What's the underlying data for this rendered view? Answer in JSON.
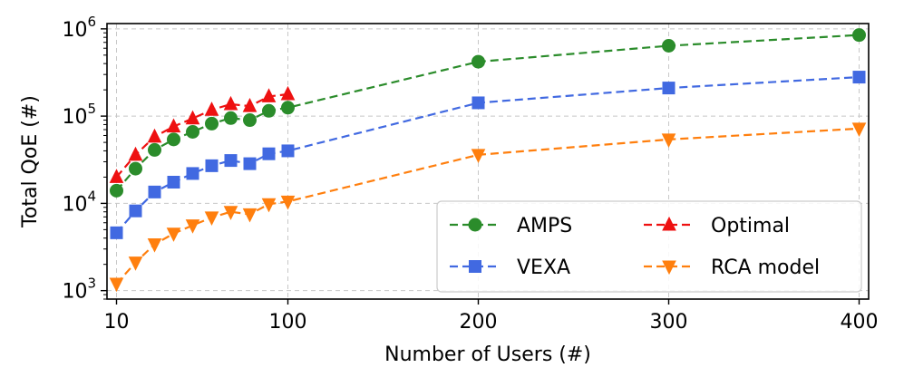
{
  "chart_data": {
    "type": "line",
    "title": "",
    "xlabel": "Number of Users (#)",
    "ylabel": "Total QoE (#)",
    "yscale": "log",
    "xlim": [
      5,
      405
    ],
    "ylim": [
      800,
      1150000
    ],
    "xticks": [
      10,
      100,
      200,
      300,
      400
    ],
    "xtick_labels": [
      "10",
      "100",
      "200",
      "300",
      "400"
    ],
    "yticks": [
      1000,
      10000,
      100000,
      1000000
    ],
    "ytick_labels": [
      {
        "base": "10",
        "exp": "3"
      },
      {
        "base": "10",
        "exp": "4"
      },
      {
        "base": "10",
        "exp": "5"
      },
      {
        "base": "10",
        "exp": "6"
      }
    ],
    "grid": true,
    "legend": {
      "placement": "lower-right",
      "columns": 2
    },
    "series": [
      {
        "name": "AMPS",
        "color": "#2b8c2b",
        "marker": "circle",
        "x": [
          10,
          20,
          30,
          40,
          50,
          60,
          70,
          80,
          90,
          100,
          200,
          300,
          400
        ],
        "y": [
          14000,
          25000,
          41000,
          54000,
          66000,
          82000,
          95000,
          90000,
          115000,
          125000,
          420000,
          640000,
          850000
        ]
      },
      {
        "name": "Optimal",
        "color": "#ee1111",
        "marker": "triangle-up",
        "x": [
          10,
          20,
          30,
          40,
          50,
          60,
          70,
          80,
          90,
          100
        ],
        "y": [
          20000,
          36000,
          58000,
          76000,
          94000,
          118000,
          137000,
          130000,
          168000,
          178000
        ]
      },
      {
        "name": "VEXA",
        "color": "#4169e1",
        "marker": "square",
        "x": [
          10,
          20,
          30,
          40,
          50,
          60,
          70,
          80,
          90,
          100,
          200,
          300,
          400
        ],
        "y": [
          4600,
          8200,
          13500,
          17500,
          22000,
          27000,
          31000,
          28500,
          37000,
          40000,
          142000,
          210000,
          280000
        ]
      },
      {
        "name": "RCA model",
        "color": "#ff7f0e",
        "marker": "triangle-down",
        "x": [
          10,
          20,
          30,
          40,
          50,
          60,
          70,
          80,
          90,
          100,
          200,
          300,
          400
        ],
        "y": [
          1200,
          2100,
          3400,
          4500,
          5600,
          6900,
          8000,
          7500,
          9800,
          10500,
          36000,
          54000,
          72000
        ]
      }
    ]
  }
}
